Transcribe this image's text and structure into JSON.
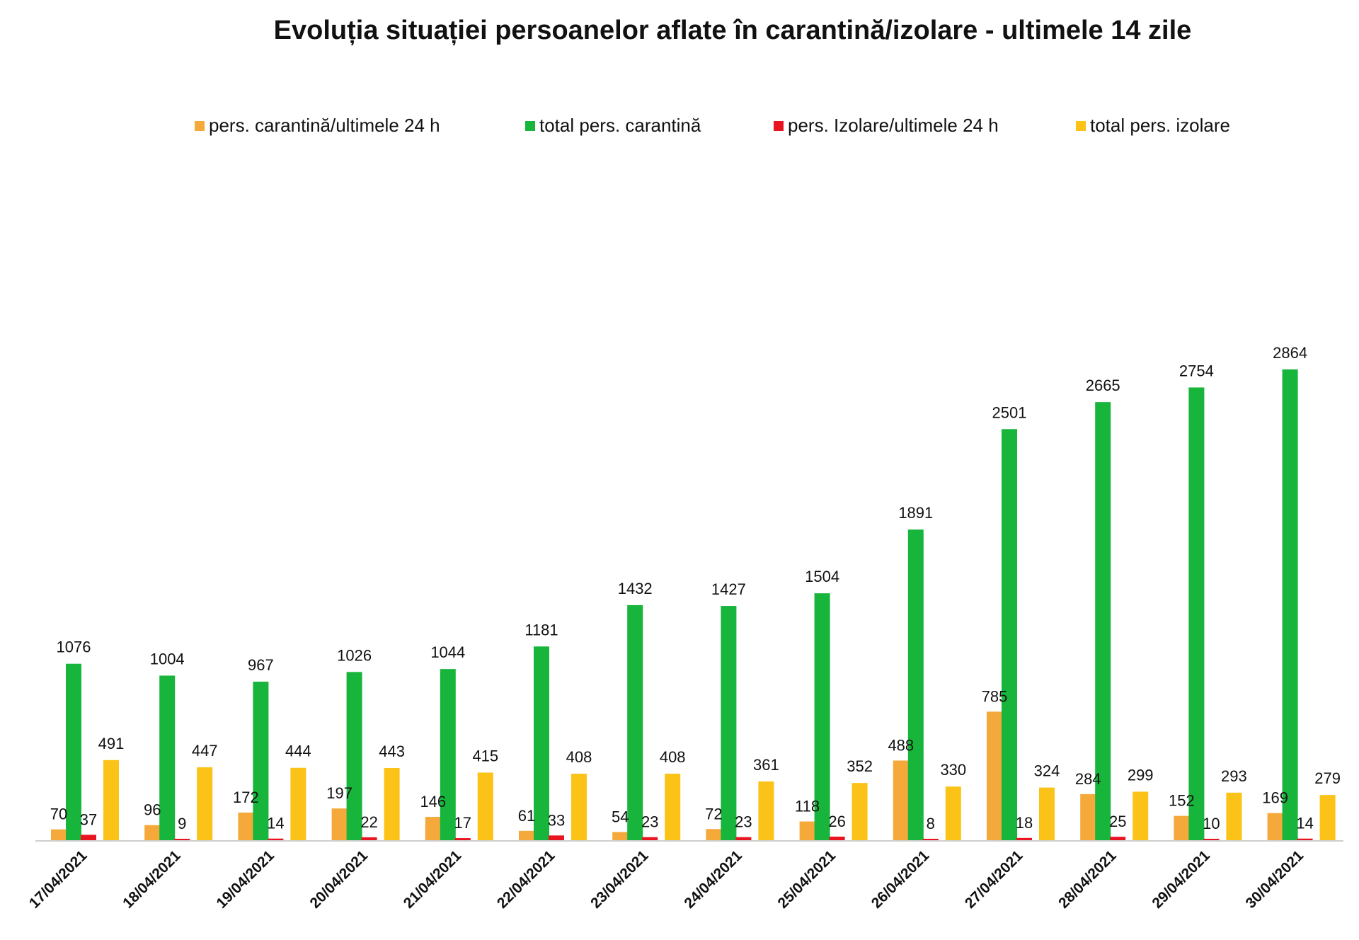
{
  "title": "Evoluția situației persoanelor aflate în carantină/izolare - ultimele 14 zile",
  "legend": [
    {
      "label": "pers. carantină/ultimele 24 h",
      "color": "#f5a93a"
    },
    {
      "label": "total pers. carantină",
      "color": "#17b53b"
    },
    {
      "label": "pers. Izolare/ultimele 24 h",
      "color": "#e8141f"
    },
    {
      "label": "total pers. izolare",
      "color": "#fbc217"
    }
  ],
  "chart_data": {
    "type": "bar",
    "title": "Evoluția situației persoanelor aflate în carantină/izolare - ultimele 14 zile",
    "xlabel": "",
    "ylabel": "",
    "legend_position": "top",
    "grid": false,
    "ylim": [
      0,
      3000
    ],
    "categories": [
      "17/04/2021",
      "18/04/2021",
      "19/04/2021",
      "20/04/2021",
      "21/04/2021",
      "22/04/2021",
      "23/04/2021",
      "24/04/2021",
      "25/04/2021",
      "26/04/2021",
      "27/04/2021",
      "28/04/2021",
      "29/04/2021",
      "30/04/2021"
    ],
    "series": [
      {
        "name": "pers. carantină/ultimele 24 h",
        "color": "#f5a93a",
        "values": [
          70,
          96,
          172,
          197,
          146,
          61,
          54,
          72,
          118,
          488,
          785,
          284,
          152,
          169
        ]
      },
      {
        "name": "total pers. carantină",
        "color": "#17b53b",
        "values": [
          1076,
          1004,
          967,
          1026,
          1044,
          1181,
          1432,
          1427,
          1504,
          1891,
          2501,
          2665,
          2754,
          2864
        ]
      },
      {
        "name": "pers. Izolare/ultimele 24 h",
        "color": "#e8141f",
        "values": [
          37,
          9,
          14,
          22,
          17,
          33,
          23,
          23,
          26,
          8,
          18,
          25,
          10,
          14
        ]
      },
      {
        "name": "total pers. izolare",
        "color": "#fbc217",
        "values": [
          491,
          447,
          444,
          443,
          415,
          408,
          408,
          361,
          352,
          330,
          324,
          299,
          293,
          279
        ]
      }
    ]
  }
}
